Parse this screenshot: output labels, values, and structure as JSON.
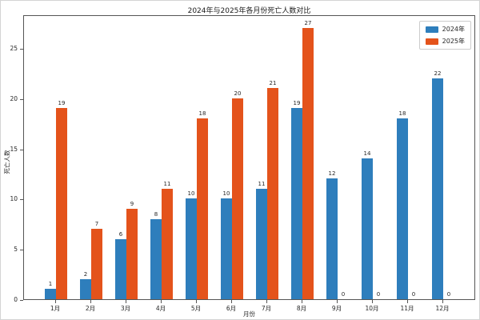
{
  "window": {
    "background": "#ffffff",
    "border_color": "#d4d4d4",
    "spine_color": "#555555",
    "text_color": "#262626"
  },
  "chart_data": {
    "type": "bar",
    "title": "2024年与2025年各月份死亡人数对比",
    "xlabel": "月份",
    "ylabel": "死亡人数",
    "categories": [
      "1月",
      "2月",
      "3月",
      "4月",
      "5月",
      "6月",
      "7月",
      "8月",
      "9月",
      "10月",
      "11月",
      "12月"
    ],
    "series": [
      {
        "name": "2024年",
        "color": "#2e7ebc",
        "values": [
          1,
          2,
          6,
          8,
          10,
          10,
          11,
          19,
          12,
          14,
          18,
          22
        ]
      },
      {
        "name": "2025年",
        "color": "#e4531b",
        "values": [
          19,
          7,
          9,
          11,
          18,
          20,
          21,
          27,
          0,
          0,
          0,
          0
        ]
      }
    ],
    "yticks": [
      0,
      5,
      10,
      15,
      20,
      25
    ],
    "ylim": [
      0,
      28.35
    ],
    "grid": false,
    "legend_position": "upper right",
    "bar_value_labels": true
  }
}
